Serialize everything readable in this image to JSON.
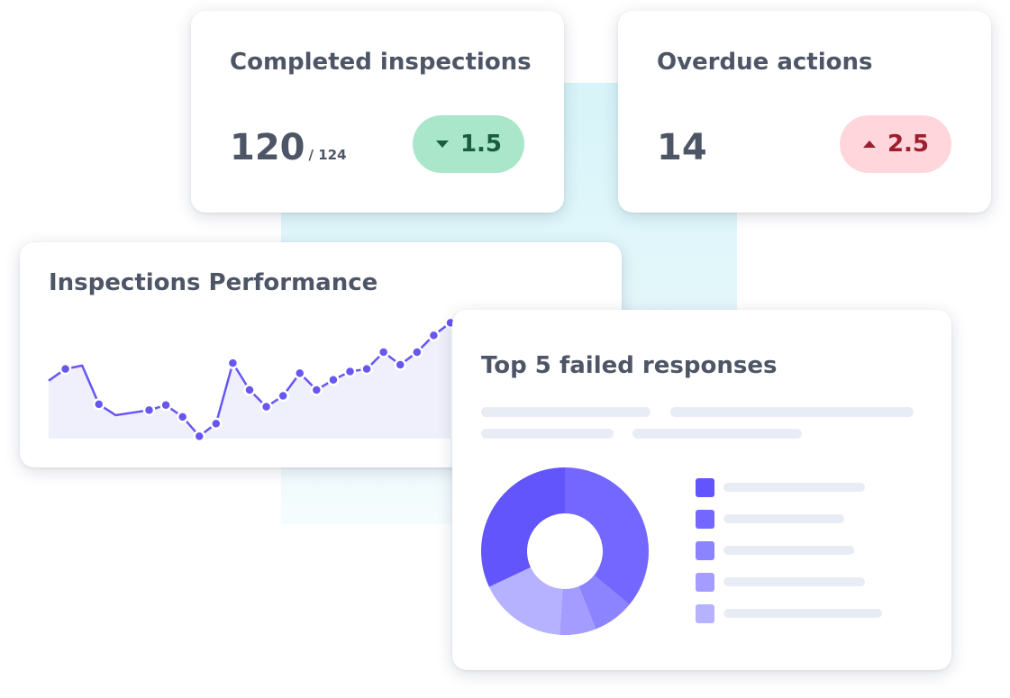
{
  "completed": {
    "title": "Completed inspections",
    "value": "120",
    "total": "/ 124",
    "change": "1.5",
    "direction": "down",
    "badge_color": "#a9e6ca"
  },
  "overdue": {
    "title": "Overdue actions",
    "value": "14",
    "change": "2.5",
    "direction": "up",
    "badge_color": "#ffd6dc"
  },
  "performance": {
    "title": "Inspections Performance",
    "line_color": "#6757f0",
    "fill_color": "#eff0fb",
    "chart_data": {
      "type": "area",
      "values": [
        41,
        55,
        59,
        13,
        0,
        3,
        6,
        12,
        -2,
        -25,
        -10,
        62,
        30,
        10,
        23,
        50,
        30,
        42,
        52,
        55,
        75,
        60,
        75,
        95,
        110
      ],
      "markers": [
        1,
        3,
        6,
        7,
        8,
        9,
        10,
        11,
        12,
        13,
        14,
        15,
        16,
        17,
        18,
        19,
        20,
        21,
        22,
        23,
        24
      ],
      "ylim": [
        -30,
        120
      ]
    }
  },
  "failed": {
    "title": "Top 5 failed responses",
    "chart_data": {
      "type": "pie",
      "values": [
        36,
        8,
        7,
        17,
        32
      ],
      "colors": [
        "#7367ff",
        "#8c83ff",
        "#a49dff",
        "#b7b2ff",
        "#6155fb"
      ]
    },
    "legend_colors": [
      "#6155fb",
      "#7367ff",
      "#8c83ff",
      "#a49dff",
      "#b7b2ff"
    ]
  }
}
